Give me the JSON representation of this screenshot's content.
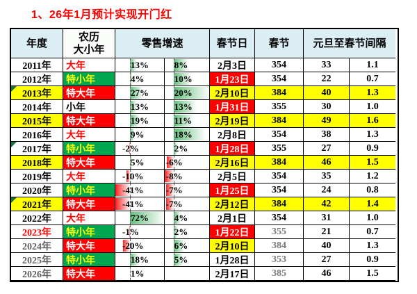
{
  "title": "1、26年1月预计实现开门红",
  "colors": {
    "title_red": "#FF0000",
    "cell_red": "#FF0000",
    "cell_yellow": "#FFFF00",
    "cell_green": "#00A650",
    "header_blue": "#DAEEF3",
    "bar_green": "#63BE7B",
    "bar_red": "#FF2020",
    "year_gray": "#5F5F5F",
    "spring_gray": "#7A7A7A",
    "corner_green": "#1D6F42",
    "white": "#FFFFFF",
    "black": "#000000"
  },
  "table": {
    "headers": [
      "年度",
      "农历\n大小年",
      "零售增速",
      "春节日",
      "春节",
      "元旦至春节间隔"
    ],
    "growth_axis": {
      "col1_percent": 30,
      "col2_percent": 20
    },
    "rows": [
      {
        "year": "2011年",
        "year_bg": "white",
        "year_color": "black",
        "lunar": "大年",
        "lunar_style": "danian",
        "g1": 13,
        "g1_label": "13%",
        "g2": 8,
        "g2_label": "8%",
        "date": "2月3日",
        "date_bg": "white",
        "spring": "354",
        "spring_gray": false,
        "gap": "33",
        "ratio": "1.1",
        "right_yellow": false,
        "corner": false
      },
      {
        "year": "2012年",
        "year_bg": "white",
        "year_color": "black",
        "lunar": "特小年",
        "lunar_style": "texiaonian",
        "g1": 4,
        "g1_label": "4%",
        "g2": 10,
        "g2_label": "10%",
        "date": "1月23日",
        "date_bg": "red",
        "spring": "354",
        "spring_gray": false,
        "gap": "22",
        "ratio": "0.7",
        "right_yellow": false,
        "corner": false
      },
      {
        "year": "2013年",
        "year_bg": "yellow",
        "year_color": "black",
        "lunar": "特大年",
        "lunar_style": "tedanian",
        "g1": 27,
        "g1_label": "27%",
        "g2": 20,
        "g2_label": "20%",
        "date": "2月10日",
        "date_bg": "yellow",
        "spring": "384",
        "spring_gray": false,
        "gap": "40",
        "ratio": "1.3",
        "right_yellow": true,
        "corner": true
      },
      {
        "year": "2014年",
        "year_bg": "white",
        "year_color": "black",
        "lunar": "小年",
        "lunar_style": "xiaonian",
        "g1": 13,
        "g1_label": "13%",
        "g2": 13,
        "g2_label": "13%",
        "date": "1月31日",
        "date_bg": "red",
        "spring": "355",
        "spring_gray": false,
        "gap": "30",
        "ratio": "1.0",
        "right_yellow": false,
        "corner": false
      },
      {
        "year": "2015年",
        "year_bg": "yellow",
        "year_color": "black",
        "lunar": "特大年",
        "lunar_style": "tedanian",
        "g1": 19,
        "g1_label": "19%",
        "g2": 11,
        "g2_label": "11%",
        "date": "2月19日",
        "date_bg": "yellow",
        "spring": "384",
        "spring_gray": false,
        "gap": "49",
        "ratio": "1.6",
        "right_yellow": true,
        "corner": false
      },
      {
        "year": "2016年",
        "year_bg": "white",
        "year_color": "black",
        "lunar": "大年",
        "lunar_style": "danian",
        "g1": 9,
        "g1_label": "9%",
        "g2": 18,
        "g2_label": "18%",
        "date": "2月8日",
        "date_bg": "white",
        "spring": "354",
        "spring_gray": false,
        "gap": "38",
        "ratio": "1.3",
        "right_yellow": false,
        "corner": false
      },
      {
        "year": "2017年",
        "year_bg": "white",
        "year_color": "black",
        "lunar": "特小年",
        "lunar_style": "texiaonian",
        "g1": -2,
        "g1_label": "-2%",
        "g2": 2,
        "g2_label": "2%",
        "date": "1月28日",
        "date_bg": "red",
        "spring": "355",
        "spring_gray": false,
        "gap": "27",
        "ratio": "0.9",
        "right_yellow": false,
        "corner": true
      },
      {
        "year": "2018年",
        "year_bg": "yellow",
        "year_color": "black",
        "lunar": "特大年",
        "lunar_style": "tedanian",
        "g1": 5,
        "g1_label": "5%",
        "g2": -6,
        "g2_label": "-6%",
        "date": "2月16日",
        "date_bg": "yellow",
        "spring": "384",
        "spring_gray": false,
        "gap": "46",
        "ratio": "1.5",
        "right_yellow": true,
        "corner": false
      },
      {
        "year": "2019年",
        "year_bg": "white",
        "year_color": "black",
        "lunar": "大年",
        "lunar_style": "danian",
        "g1": -10,
        "g1_label": "-10%",
        "g2": -8,
        "g2_label": "-8%",
        "date": "2月5日",
        "date_bg": "white",
        "spring": "354",
        "spring_gray": false,
        "gap": "35",
        "ratio": "1.2",
        "right_yellow": false,
        "corner": false
      },
      {
        "year": "2020年",
        "year_bg": "white",
        "year_color": "black",
        "lunar": "特小年",
        "lunar_style": "texiaonian",
        "g1": -41,
        "g1_label": "-41%",
        "g2": -7,
        "g2_label": "-7%",
        "date": "1月25日",
        "date_bg": "red",
        "spring": "354",
        "spring_gray": false,
        "gap": "24",
        "ratio": "0.8",
        "right_yellow": false,
        "corner": false
      },
      {
        "year": "2021年",
        "year_bg": "yellow",
        "year_color": "black",
        "lunar": "特大年",
        "lunar_style": "tedanian",
        "g1": -41,
        "g1_label": "-41%",
        "g2": -7,
        "g2_label": "-7%",
        "date": "2月12日",
        "date_bg": "yellow",
        "spring": "384",
        "spring_gray": false,
        "gap": "42",
        "ratio": "1.4",
        "right_yellow": true,
        "corner": true
      },
      {
        "year": "2022年",
        "year_bg": "white",
        "year_color": "black",
        "lunar": "大年",
        "lunar_style": "danian",
        "g1": 72,
        "g1_label": "72%",
        "g2": 4,
        "g2_label": "4%",
        "date": "2月1日",
        "date_bg": "white",
        "spring": "354",
        "spring_gray": false,
        "gap": "31",
        "ratio": "1.0",
        "right_yellow": false,
        "corner": false
      },
      {
        "year": "2023年",
        "year_bg": "white",
        "year_color": "red",
        "lunar": "特小年",
        "lunar_style": "texiaonian",
        "g1": -1,
        "g1_label": "-1%",
        "g2": 2,
        "g2_label": "2%",
        "date": "1月22日",
        "date_bg": "red",
        "spring": "355",
        "spring_gray": true,
        "gap": "21",
        "ratio": "0.7",
        "right_yellow": false,
        "corner": false
      },
      {
        "year": "2024年",
        "year_bg": "white",
        "year_color": "gray",
        "lunar": "特大年",
        "lunar_style": "tedanian",
        "g1": -20,
        "g1_label": "-20%",
        "g2": 6,
        "g2_label": "6%",
        "date": "2月10日",
        "date_bg": "yellow",
        "spring": "384",
        "spring_gray": true,
        "gap": "40",
        "ratio": "1.3",
        "right_yellow": false,
        "corner": false
      },
      {
        "year": "2025年",
        "year_bg": "white",
        "year_color": "gray",
        "lunar": "特小年",
        "lunar_style": "texiaonian",
        "g1": 18,
        "g1_label": "18%",
        "g2": 5,
        "g2_label": "5%",
        "date": "1月28日",
        "date_bg": "white",
        "spring": "353",
        "spring_gray": true,
        "gap": "27",
        "ratio": "0.9",
        "right_yellow": false,
        "corner": false
      },
      {
        "year": "2026年",
        "year_bg": "white",
        "year_color": "gray",
        "lunar": "特大年",
        "lunar_style": "tedanian",
        "g1": 1,
        "g1_label": "1%",
        "g2": null,
        "g2_label": "",
        "date": "2月17日",
        "date_bg": "white",
        "spring": "385",
        "spring_gray": true,
        "gap": "46",
        "ratio": "1.5",
        "right_yellow": false,
        "corner": false
      }
    ]
  }
}
